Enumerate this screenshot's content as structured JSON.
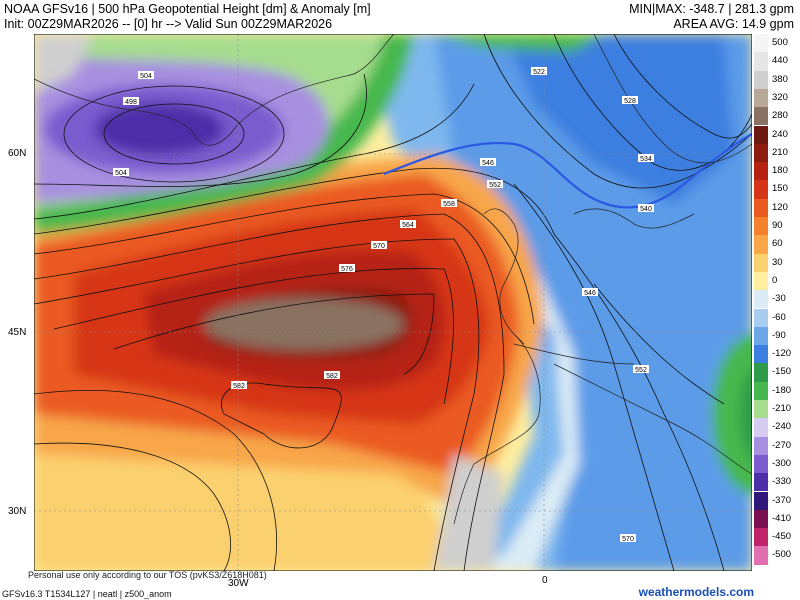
{
  "header": {
    "line1": "NOAA GFSv16 | 500 hPa Geopotential Height [dm] & Anomaly [m]",
    "line2": "Init: 00Z29MAR2026 -- [0] hr --> Valid Sun 00Z29MAR2026",
    "minmax": "MIN|MAX: -348.7 | 281.3 gpm",
    "area_avg": "AREA AVG: 14.9 gpm"
  },
  "axes": {
    "lat_labels": [
      "60N",
      "45N",
      "30N"
    ],
    "lon_labels": [
      "30W",
      "0"
    ]
  },
  "contour_labels": [
    "504",
    "498",
    "504",
    "522",
    "528",
    "534",
    "540",
    "546",
    "546",
    "552",
    "558",
    "564",
    "570",
    "576",
    "582",
    "582",
    "552",
    "570"
  ],
  "legend": {
    "entries": [
      {
        "label": "500",
        "color": "#f5f5f5"
      },
      {
        "label": "440",
        "color": "#e6e6e6"
      },
      {
        "label": "380",
        "color": "#cfcfcf"
      },
      {
        "label": "320",
        "color": "#b8a89a"
      },
      {
        "label": "280",
        "color": "#8a7262"
      },
      {
        "label": "240",
        "color": "#6e1a10"
      },
      {
        "label": "210",
        "color": "#8e1b10"
      },
      {
        "label": "180",
        "color": "#b52212"
      },
      {
        "label": "150",
        "color": "#d63418"
      },
      {
        "label": "120",
        "color": "#ea5a20"
      },
      {
        "label": "90",
        "color": "#f4822d"
      },
      {
        "label": "60",
        "color": "#f8a648"
      },
      {
        "label": "30",
        "color": "#fbd06e"
      },
      {
        "label": "0",
        "color": "#fdeea0"
      },
      {
        "label": "-30",
        "color": "#dcecf6"
      },
      {
        "label": "-60",
        "color": "#a8cdef"
      },
      {
        "label": "-90",
        "color": "#6aa6e8"
      },
      {
        "label": "-120",
        "color": "#3d7fe0"
      },
      {
        "label": "-150",
        "color": "#2f9a4a"
      },
      {
        "label": "-180",
        "color": "#46b84e"
      },
      {
        "label": "-210",
        "color": "#a6dc8e"
      },
      {
        "label": "-240",
        "color": "#d6ccef"
      },
      {
        "label": "-270",
        "color": "#a890e0"
      },
      {
        "label": "-300",
        "color": "#7a5ccf"
      },
      {
        "label": "-330",
        "color": "#4d2fa8"
      },
      {
        "label": "-370",
        "color": "#2e1778"
      },
      {
        "label": "-410",
        "color": "#7a1050"
      },
      {
        "label": "-450",
        "color": "#c02468"
      },
      {
        "label": "-500",
        "color": "#e070b0"
      }
    ]
  },
  "footer": {
    "tos": "Personal use only according to our TOS (pvKS3/Z618H081)",
    "model_info": "GFSv16.3 T1534L127 | neatl | z500_anom",
    "brand": "weathermodels.com"
  }
}
